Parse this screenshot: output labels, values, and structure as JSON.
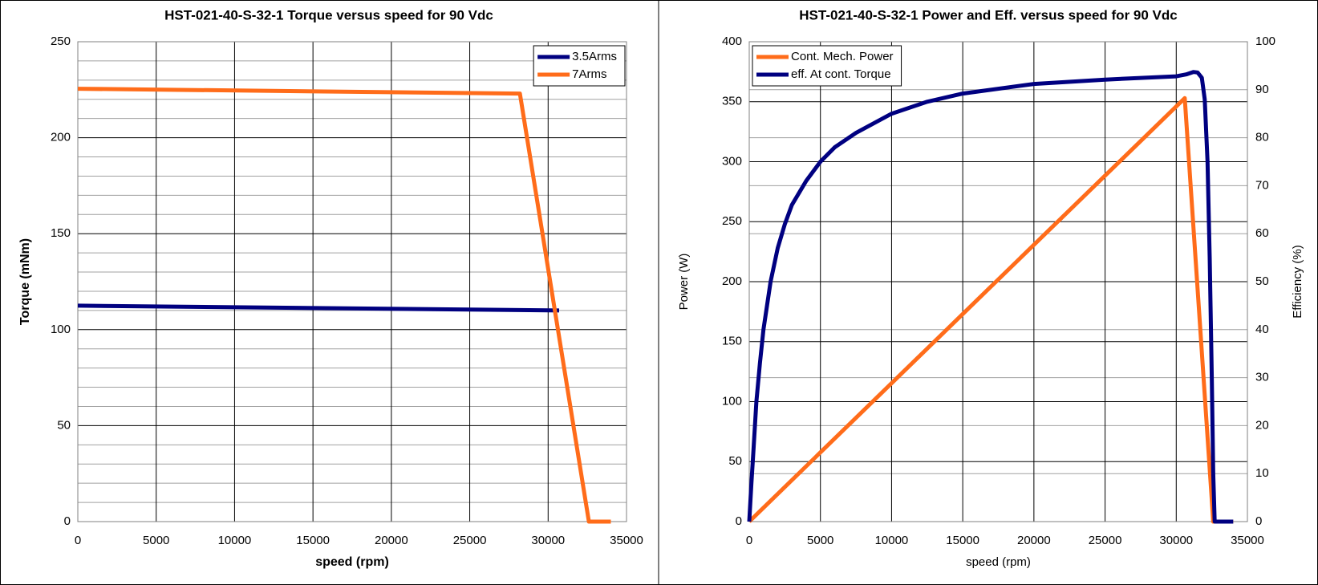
{
  "chart_data": [
    {
      "type": "line",
      "title": "HST-021-40-S-32-1 Torque versus speed for 90 Vdc",
      "xlabel": "speed (rpm)",
      "ylabel": "Torque (mNm)",
      "xlim": [
        0,
        35000
      ],
      "xticks": [
        0,
        5000,
        10000,
        15000,
        20000,
        25000,
        30000,
        35000
      ],
      "ylim": [
        0,
        250
      ],
      "yticks": [
        0,
        50,
        100,
        150,
        200,
        250
      ],
      "yminorticks": [
        10,
        20,
        30,
        40,
        60,
        70,
        80,
        90,
        110,
        120,
        130,
        140,
        160,
        170,
        180,
        190,
        210,
        220,
        230,
        240
      ],
      "grid": true,
      "legend": "upper right",
      "series": [
        {
          "name": "3.5Arms",
          "color": "#000080",
          "x": [
            0,
            30700
          ],
          "values": [
            112.5,
            110
          ]
        },
        {
          "name": "7Arms",
          "color": "#ff6c1a",
          "x": [
            0,
            28200,
            32600,
            34000
          ],
          "values": [
            225.5,
            223,
            0,
            0
          ]
        }
      ]
    },
    {
      "type": "line",
      "title": "HST-021-40-S-32-1 Power and Eff. versus speed for 90 Vdc",
      "xlabel": "speed (rpm)",
      "ylabel": "Power (W)",
      "y2label": "Efficiency (%)",
      "xlim": [
        0,
        35000
      ],
      "xticks": [
        0,
        5000,
        10000,
        15000,
        20000,
        25000,
        30000,
        35000
      ],
      "ylim": [
        0,
        400
      ],
      "yticks": [
        0,
        50,
        100,
        150,
        200,
        250,
        300,
        350,
        400
      ],
      "y2lim": [
        0,
        100
      ],
      "y2ticks": [
        0,
        10,
        20,
        30,
        40,
        50,
        60,
        70,
        80,
        90,
        100
      ],
      "grid": true,
      "legend": "upper left",
      "series": [
        {
          "name": "Cont. Mech. Power",
          "color": "#ff6c1a",
          "x": [
            0,
            30600,
            32600,
            34000
          ],
          "values": [
            0,
            353,
            0,
            0
          ]
        },
        {
          "name": "eff. At cont. Torque",
          "color": "#000080",
          "axis": "y2",
          "x": [
            0,
            150,
            300,
            500,
            750,
            1000,
            1500,
            2000,
            2500,
            3000,
            4000,
            5000,
            6000,
            7500,
            10000,
            12500,
            15000,
            20000,
            25000,
            30000,
            30700,
            31200,
            31500,
            31800,
            32000,
            32200,
            32350,
            32500,
            32600,
            32700,
            34000
          ],
          "values": [
            0,
            8,
            15,
            25,
            33,
            40,
            50,
            57,
            62,
            66,
            71,
            75,
            78,
            81,
            85,
            87.5,
            89.2,
            91.2,
            92.1,
            92.8,
            93.2,
            93.7,
            93.6,
            92.5,
            88,
            75,
            55,
            30,
            10,
            0,
            0
          ]
        }
      ]
    }
  ]
}
